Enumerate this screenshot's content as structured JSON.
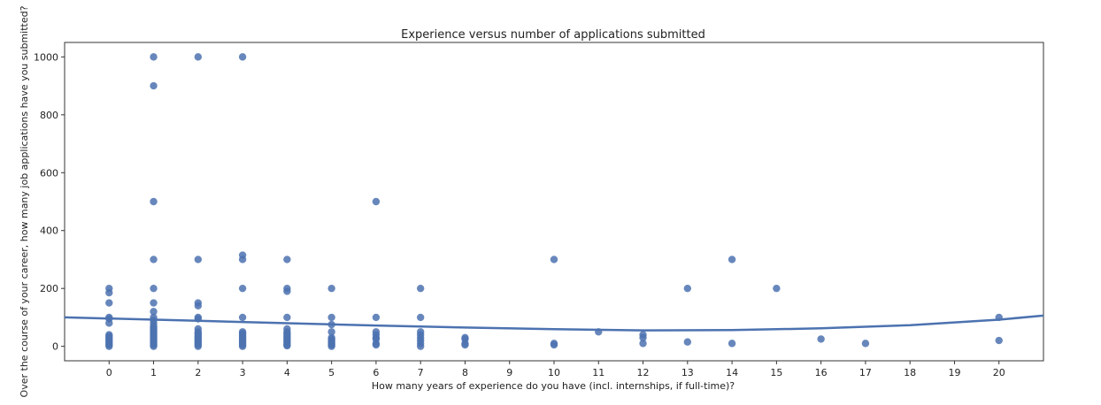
{
  "chart_data": {
    "type": "scatter",
    "title": "Experience versus number of applications submitted",
    "xlabel": "How many years of experience do you have (incl. internships, if full-time)?",
    "ylabel": "Over the course of your career, how many job applications have you submitted?",
    "xlim": [
      -1,
      21
    ],
    "ylim": [
      -50,
      1050
    ],
    "xticks": [
      0,
      1,
      2,
      3,
      4,
      5,
      6,
      7,
      8,
      9,
      10,
      11,
      12,
      13,
      14,
      15,
      16,
      17,
      18,
      19,
      20
    ],
    "yticks": [
      0,
      200,
      400,
      600,
      800,
      1000
    ],
    "grid": false,
    "marker_color": "#4c72b0",
    "line_color": "#4c72b0",
    "series": [
      {
        "points": [
          [
            0,
            0
          ],
          [
            0,
            5
          ],
          [
            0,
            10
          ],
          [
            0,
            15
          ],
          [
            0,
            20
          ],
          [
            0,
            25
          ],
          [
            0,
            30
          ],
          [
            0,
            35
          ],
          [
            0,
            40
          ],
          [
            0,
            80
          ],
          [
            0,
            95
          ],
          [
            0,
            100
          ],
          [
            0,
            150
          ],
          [
            0,
            185
          ],
          [
            0,
            200
          ],
          [
            1,
            0
          ],
          [
            1,
            5
          ],
          [
            1,
            10
          ],
          [
            1,
            15
          ],
          [
            1,
            20
          ],
          [
            1,
            25
          ],
          [
            1,
            30
          ],
          [
            1,
            35
          ],
          [
            1,
            40
          ],
          [
            1,
            45
          ],
          [
            1,
            50
          ],
          [
            1,
            55
          ],
          [
            1,
            60
          ],
          [
            1,
            65
          ],
          [
            1,
            70
          ],
          [
            1,
            80
          ],
          [
            1,
            90
          ],
          [
            1,
            100
          ],
          [
            1,
            120
          ],
          [
            1,
            150
          ],
          [
            1,
            200
          ],
          [
            1,
            300
          ],
          [
            1,
            500
          ],
          [
            1,
            900
          ],
          [
            1,
            1000
          ],
          [
            2,
            0
          ],
          [
            2,
            5
          ],
          [
            2,
            10
          ],
          [
            2,
            15
          ],
          [
            2,
            20
          ],
          [
            2,
            25
          ],
          [
            2,
            30
          ],
          [
            2,
            35
          ],
          [
            2,
            40
          ],
          [
            2,
            45
          ],
          [
            2,
            50
          ],
          [
            2,
            60
          ],
          [
            2,
            95
          ],
          [
            2,
            100
          ],
          [
            2,
            140
          ],
          [
            2,
            150
          ],
          [
            2,
            300
          ],
          [
            2,
            1000
          ],
          [
            3,
            0
          ],
          [
            3,
            5
          ],
          [
            3,
            10
          ],
          [
            3,
            15
          ],
          [
            3,
            20
          ],
          [
            3,
            25
          ],
          [
            3,
            30
          ],
          [
            3,
            35
          ],
          [
            3,
            40
          ],
          [
            3,
            45
          ],
          [
            3,
            50
          ],
          [
            3,
            100
          ],
          [
            3,
            200
          ],
          [
            3,
            300
          ],
          [
            3,
            315
          ],
          [
            3,
            1000
          ],
          [
            4,
            2
          ],
          [
            4,
            5
          ],
          [
            4,
            10
          ],
          [
            4,
            15
          ],
          [
            4,
            20
          ],
          [
            4,
            25
          ],
          [
            4,
            30
          ],
          [
            4,
            35
          ],
          [
            4,
            40
          ],
          [
            4,
            45
          ],
          [
            4,
            50
          ],
          [
            4,
            60
          ],
          [
            4,
            100
          ],
          [
            4,
            190
          ],
          [
            4,
            200
          ],
          [
            4,
            300
          ],
          [
            5,
            0
          ],
          [
            5,
            5
          ],
          [
            5,
            10
          ],
          [
            5,
            15
          ],
          [
            5,
            20
          ],
          [
            5,
            25
          ],
          [
            5,
            30
          ],
          [
            5,
            50
          ],
          [
            5,
            75
          ],
          [
            5,
            100
          ],
          [
            5,
            200
          ],
          [
            6,
            5
          ],
          [
            6,
            10
          ],
          [
            6,
            25
          ],
          [
            6,
            30
          ],
          [
            6,
            40
          ],
          [
            6,
            50
          ],
          [
            6,
            100
          ],
          [
            6,
            500
          ],
          [
            7,
            0
          ],
          [
            7,
            10
          ],
          [
            7,
            20
          ],
          [
            7,
            30
          ],
          [
            7,
            40
          ],
          [
            7,
            50
          ],
          [
            7,
            100
          ],
          [
            7,
            200
          ],
          [
            8,
            5
          ],
          [
            8,
            10
          ],
          [
            8,
            25
          ],
          [
            8,
            30
          ],
          [
            10,
            5
          ],
          [
            10,
            10
          ],
          [
            10,
            300
          ],
          [
            11,
            50
          ],
          [
            12,
            10
          ],
          [
            12,
            30
          ],
          [
            12,
            40
          ],
          [
            13,
            15
          ],
          [
            13,
            200
          ],
          [
            14,
            10
          ],
          [
            14,
            300
          ],
          [
            15,
            200
          ],
          [
            16,
            25
          ],
          [
            17,
            10
          ],
          [
            20,
            20
          ],
          [
            20,
            100
          ]
        ]
      }
    ],
    "trend": {
      "type": "quadratic",
      "x": [
        -1,
        0,
        2,
        4,
        6,
        8,
        10,
        12,
        14,
        16,
        18,
        20,
        21
      ],
      "y": [
        100,
        96,
        88,
        80,
        72,
        65,
        59,
        55,
        56,
        62,
        73,
        92,
        106
      ]
    }
  }
}
